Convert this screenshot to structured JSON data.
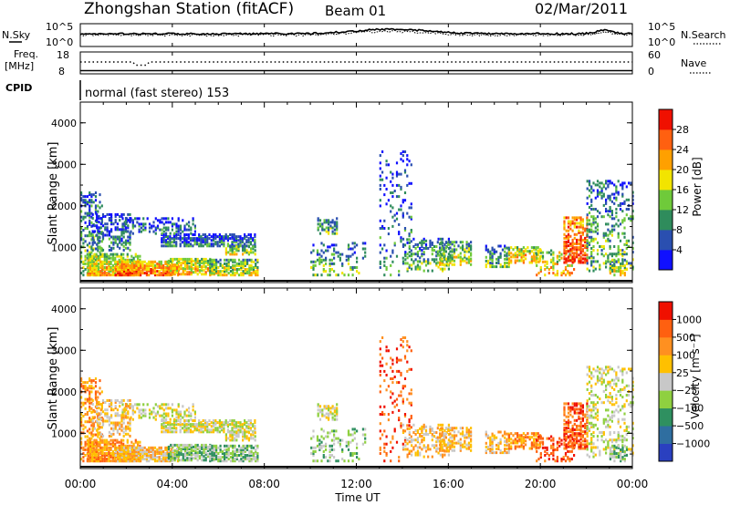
{
  "header": {
    "title": "Zhongshan Station (fitACF)",
    "beam": "Beam 01",
    "date": "02/Mar/2011"
  },
  "panels": {
    "nsky_label": "N.Sky",
    "nsearch_label": "N.Search",
    "nsky_ticks": [
      "10^5",
      "10^0"
    ],
    "nsearch_ticks": [
      "10^5",
      "10^0"
    ],
    "freq_label_1": "Freq.",
    "freq_label_2": "[MHz]",
    "freq_ticks": [
      "18",
      "8"
    ],
    "nave_label": "Nave",
    "nave_ticks": [
      "60",
      "0"
    ],
    "cpid_label": "CPID",
    "cpid_text": "normal (fast stereo) 153"
  },
  "chart_data": [
    {
      "type": "heatmap",
      "id": "power",
      "ylabel": "Slant Range [km]",
      "yticks": [
        "1000",
        "2000",
        "3000",
        "4000"
      ],
      "colorbar_label": "Power [dB]",
      "colorbar_ticks": [
        "4",
        "8",
        "12",
        "16",
        "20",
        "24",
        "28"
      ],
      "colorbar_colors": [
        "#1010ff",
        "#2a4fb0",
        "#2f8c5c",
        "#6fca3a",
        "#f2e400",
        "#ffa000",
        "#ff6010",
        "#f01000"
      ]
    },
    {
      "type": "heatmap",
      "id": "velocity",
      "ylabel": "Slant Range [km]",
      "yticks": [
        "1000",
        "2000",
        "3000",
        "4000"
      ],
      "colorbar_label": "Velocity [m s⁻¹]",
      "colorbar_ticks": [
        "1000",
        "500",
        "100",
        "25",
        "−25",
        "−100",
        "−500",
        "−1000"
      ],
      "colorbar_colors": [
        "#2a40c0",
        "#2f6ea0",
        "#2f9060",
        "#8fd040",
        "#c8c8c8",
        "#ffc000",
        "#ff9020",
        "#ff6010",
        "#f01000"
      ]
    }
  ],
  "xaxis": {
    "label": "Time UT",
    "ticks": [
      "00:00",
      "04:00",
      "08:00",
      "12:00",
      "16:00",
      "20:00",
      "00:00"
    ]
  }
}
